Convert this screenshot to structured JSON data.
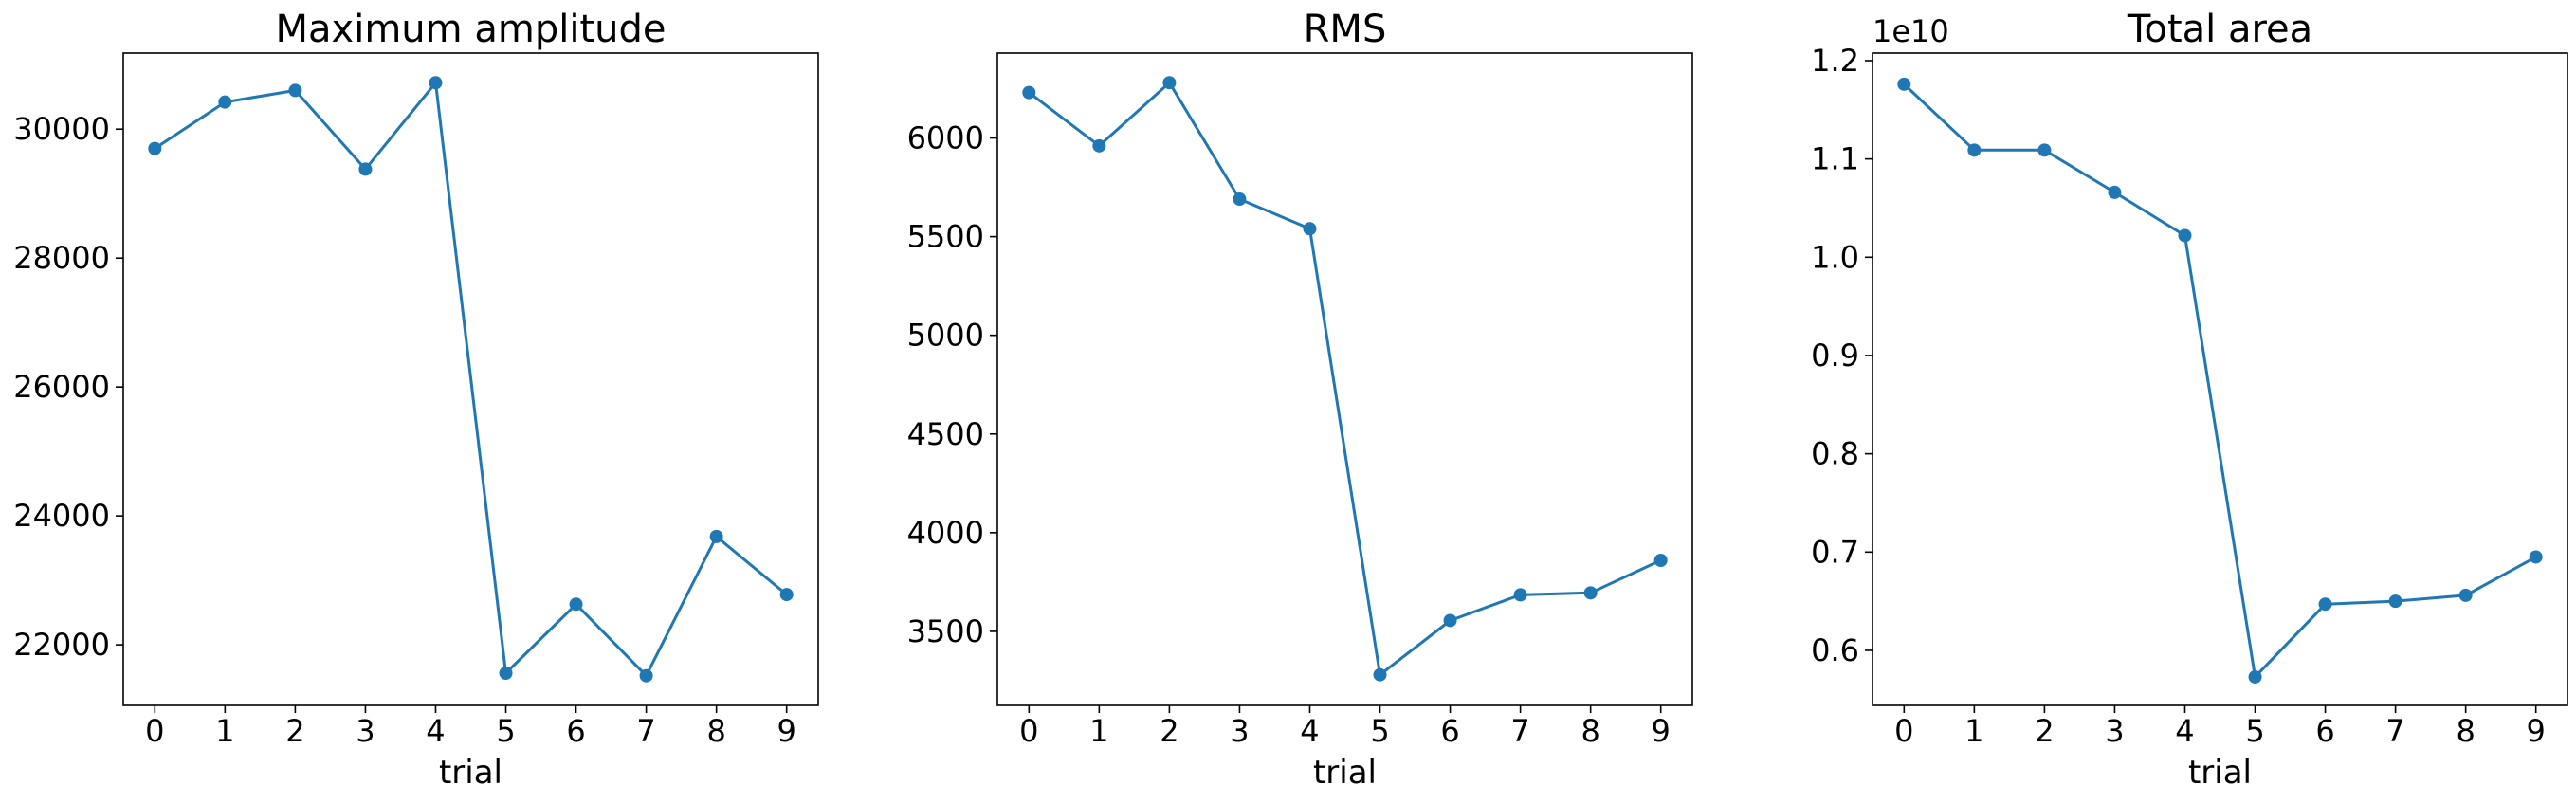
{
  "colors": {
    "series": "#1f77b4"
  },
  "chart_data": [
    {
      "type": "line",
      "title": "Maximum amplitude",
      "xlabel": "trial",
      "ylabel": "",
      "offset_label": "",
      "x": [
        0,
        1,
        2,
        3,
        4,
        5,
        6,
        7,
        8,
        9
      ],
      "x_ticks": [
        "0",
        "1",
        "2",
        "3",
        "4",
        "5",
        "6",
        "7",
        "8",
        "9"
      ],
      "y_ticks": [
        "22000",
        "24000",
        "26000",
        "28000",
        "30000"
      ],
      "y_tick_values": [
        22000,
        24000,
        26000,
        28000,
        30000
      ],
      "ylim": [
        21060,
        31180
      ],
      "xlim": [
        -0.45,
        9.45
      ],
      "grid": false,
      "series": [
        {
          "values": [
            29700,
            30420,
            30600,
            29380,
            30720,
            21560,
            22630,
            21520,
            23680,
            22780
          ]
        }
      ]
    },
    {
      "type": "line",
      "title": "RMS",
      "xlabel": "trial",
      "ylabel": "",
      "offset_label": "",
      "x": [
        0,
        1,
        2,
        3,
        4,
        5,
        6,
        7,
        8,
        9
      ],
      "x_ticks": [
        "0",
        "1",
        "2",
        "3",
        "4",
        "5",
        "6",
        "7",
        "8",
        "9"
      ],
      "y_ticks": [
        "3500",
        "4000",
        "4500",
        "5000",
        "5500",
        "6000"
      ],
      "y_tick_values": [
        3500,
        4000,
        4500,
        5000,
        5500,
        6000
      ],
      "ylim": [
        3125,
        6430
      ],
      "xlim": [
        -0.45,
        9.45
      ],
      "grid": false,
      "series": [
        {
          "values": [
            6230,
            5960,
            6280,
            5690,
            5540,
            3280,
            3555,
            3685,
            3695,
            3860
          ]
        }
      ]
    },
    {
      "type": "line",
      "title": "Total area",
      "xlabel": "trial",
      "ylabel": "",
      "offset_label": "1e10",
      "x": [
        0,
        1,
        2,
        3,
        4,
        5,
        6,
        7,
        8,
        9
      ],
      "x_ticks": [
        "0",
        "1",
        "2",
        "3",
        "4",
        "5",
        "6",
        "7",
        "8",
        "9"
      ],
      "y_ticks": [
        "0.6",
        "0.7",
        "0.8",
        "0.9",
        "1.0",
        "1.1",
        "1.2"
      ],
      "y_tick_values": [
        0.6,
        0.7,
        0.8,
        0.9,
        1.0,
        1.1,
        1.2
      ],
      "ylim": [
        0.544,
        1.2077
      ],
      "xlim": [
        -0.45,
        9.45
      ],
      "grid": false,
      "series": [
        {
          "values": [
            1.176,
            1.109,
            1.109,
            1.066,
            1.022,
            0.573,
            0.647,
            0.65,
            0.656,
            0.695
          ]
        }
      ]
    }
  ]
}
